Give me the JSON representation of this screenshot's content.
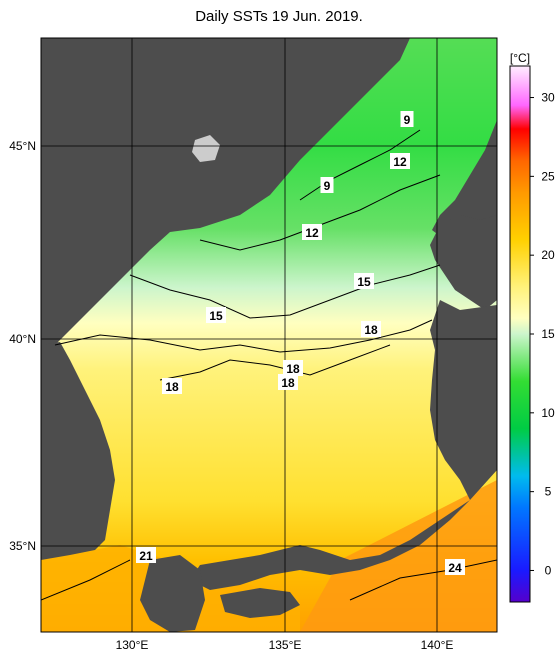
{
  "title": "Daily SSTs 19 Jun. 2019.",
  "colorbar": {
    "unit": "[°C]",
    "min": -2,
    "max": 32,
    "ticks": [
      0,
      5,
      10,
      15,
      20,
      25,
      30
    ],
    "stops": [
      {
        "v": -2,
        "c": "#5500cc"
      },
      {
        "v": 0,
        "c": "#1a1aff"
      },
      {
        "v": 4,
        "c": "#0077ff"
      },
      {
        "v": 6,
        "c": "#00bbee"
      },
      {
        "v": 9,
        "c": "#00cc44"
      },
      {
        "v": 12,
        "c": "#33dd33"
      },
      {
        "v": 15,
        "c": "#ccf5cc"
      },
      {
        "v": 16,
        "c": "#ffffc0"
      },
      {
        "v": 18,
        "c": "#fff27a"
      },
      {
        "v": 21,
        "c": "#ffd000"
      },
      {
        "v": 24,
        "c": "#ff9900"
      },
      {
        "v": 26,
        "c": "#ff6600"
      },
      {
        "v": 28,
        "c": "#ff0000"
      },
      {
        "v": 29.5,
        "c": "#ff66ff"
      },
      {
        "v": 32,
        "c": "#ffeeff"
      }
    ]
  },
  "lon_ticks": [
    "130°E",
    "135°E",
    "140°E"
  ],
  "lat_ticks": [
    "35°N",
    "40°N",
    "45°N"
  ],
  "contour_labels": [
    "9",
    "12",
    "9",
    "12",
    "15",
    "15",
    "18",
    "18",
    "18",
    "18",
    "21",
    "24"
  ],
  "colors": {
    "land": "#4d4d4d",
    "frame": "#000000"
  }
}
